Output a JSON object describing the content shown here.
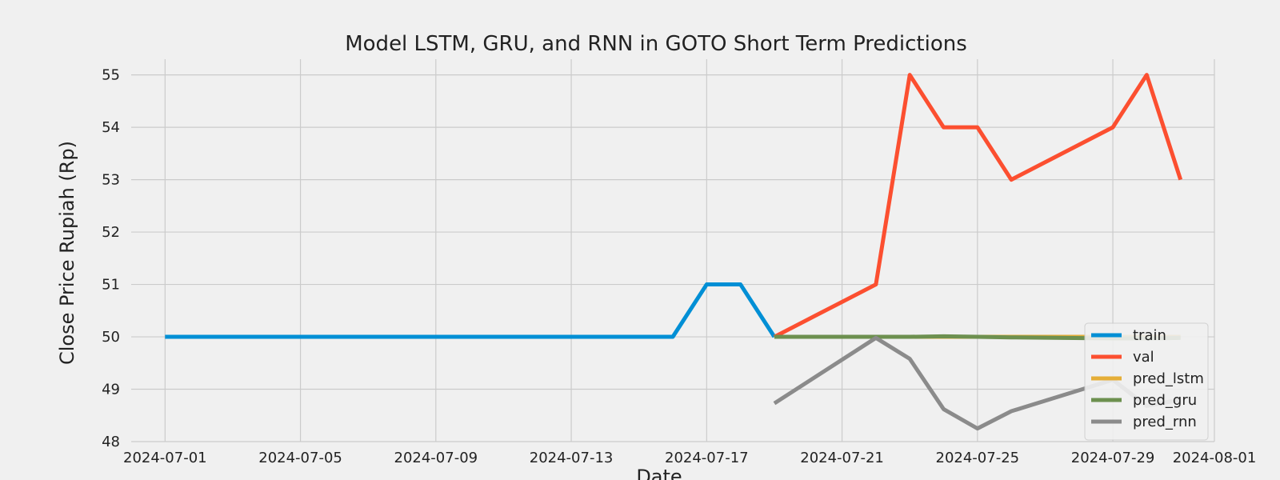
{
  "chart_data": {
    "type": "line",
    "title": "Model LSTM, GRU, and RNN in GOTO Short Term Predictions",
    "xlabel": "Date",
    "ylabel": "Close Price Rupiah (Rp)",
    "xlim": [
      "2024-06-30",
      "2024-08-01"
    ],
    "ylim": [
      48,
      55.3
    ],
    "x_ticks": [
      "2024-07-01",
      "2024-07-05",
      "2024-07-09",
      "2024-07-13",
      "2024-07-17",
      "2024-07-21",
      "2024-07-25",
      "2024-07-29",
      "2024-08-01"
    ],
    "y_ticks": [
      48,
      49,
      50,
      51,
      52,
      53,
      54,
      55
    ],
    "grid": true,
    "legend_position": "bottom-right",
    "series": [
      {
        "name": "train",
        "color": "#008fd5",
        "x": [
          "2024-07-01",
          "2024-07-16",
          "2024-07-17",
          "2024-07-18",
          "2024-07-19"
        ],
        "y": [
          50,
          50,
          51,
          51,
          50
        ]
      },
      {
        "name": "val",
        "color": "#fc4f30",
        "x": [
          "2024-07-19",
          "2024-07-22",
          "2024-07-23",
          "2024-07-24",
          "2024-07-25",
          "2024-07-26",
          "2024-07-29",
          "2024-07-30",
          "2024-07-31"
        ],
        "y": [
          50,
          51,
          55,
          54,
          54,
          53,
          54,
          55,
          53
        ]
      },
      {
        "name": "pred_lstm",
        "color": "#e5ae38",
        "x": [
          "2024-07-19",
          "2024-07-22",
          "2024-07-23",
          "2024-07-24",
          "2024-07-25",
          "2024-07-26",
          "2024-07-29",
          "2024-07-30",
          "2024-07-31"
        ],
        "y": [
          50.0,
          50.0,
          50.0,
          50.0,
          50.0,
          50.0,
          50.0,
          50.0,
          50.0
        ]
      },
      {
        "name": "pred_gru",
        "color": "#6d904f",
        "x": [
          "2024-07-19",
          "2024-07-22",
          "2024-07-23",
          "2024-07-24",
          "2024-07-25",
          "2024-07-26",
          "2024-07-29",
          "2024-07-30",
          "2024-07-31"
        ],
        "y": [
          50.0,
          50.0,
          50.0,
          50.01,
          50.0,
          49.99,
          49.97,
          49.97,
          49.98
        ]
      },
      {
        "name": "pred_rnn",
        "color": "#8b8b8b",
        "x": [
          "2024-07-19",
          "2024-07-22",
          "2024-07-23",
          "2024-07-24",
          "2024-07-25",
          "2024-07-26",
          "2024-07-29",
          "2024-07-30",
          "2024-07-31"
        ],
        "y": [
          48.73,
          49.98,
          49.58,
          48.62,
          48.25,
          48.58,
          49.18,
          48.68,
          48.8
        ]
      }
    ]
  }
}
